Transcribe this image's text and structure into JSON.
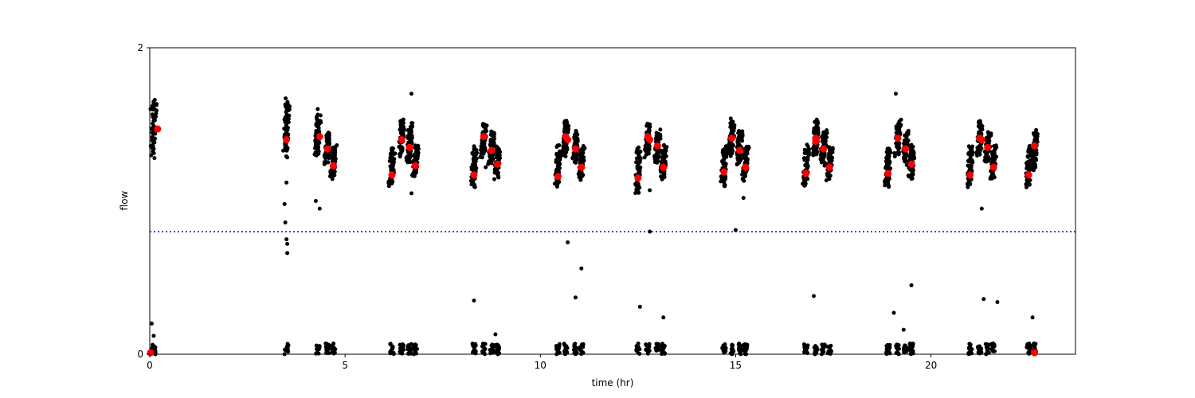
{
  "chart_data": {
    "type": "scatter",
    "xlabel": "time (hr)",
    "ylabel": "flow",
    "xlim": [
      0,
      23.7
    ],
    "ylim": [
      0,
      2
    ],
    "xticks": [
      0,
      5,
      10,
      15,
      20
    ],
    "yticks": [
      0,
      2
    ],
    "grid": false,
    "threshold": {
      "y": 0.8,
      "style": "dotted",
      "color": "#0000ff"
    },
    "colors": {
      "points": "#000000",
      "means": "#ff0000"
    },
    "clusters": [
      {
        "x": 0.1,
        "ymin": 1.3,
        "ymax": 1.65,
        "low": true
      },
      {
        "x": 3.5,
        "ymin": 1.3,
        "ymax": 1.65,
        "low": true
      },
      {
        "x": 4.3,
        "ymin": 1.3,
        "ymax": 1.55,
        "low": true
      },
      {
        "x": 4.55,
        "ymin": 1.25,
        "ymax": 1.45,
        "low": true
      },
      {
        "x": 4.7,
        "ymin": 1.15,
        "ymax": 1.35,
        "low": true
      },
      {
        "x": 6.2,
        "ymin": 1.1,
        "ymax": 1.35,
        "low": true
      },
      {
        "x": 6.45,
        "ymin": 1.3,
        "ymax": 1.52,
        "low": true
      },
      {
        "x": 6.65,
        "ymin": 1.25,
        "ymax": 1.5,
        "low": true
      },
      {
        "x": 6.8,
        "ymin": 1.15,
        "ymax": 1.35,
        "low": true
      },
      {
        "x": 8.3,
        "ymin": 1.1,
        "ymax": 1.35,
        "low": true
      },
      {
        "x": 8.55,
        "ymin": 1.3,
        "ymax": 1.5,
        "low": true
      },
      {
        "x": 8.75,
        "ymin": 1.25,
        "ymax": 1.45,
        "low": true
      },
      {
        "x": 8.9,
        "ymin": 1.15,
        "ymax": 1.35,
        "low": true
      },
      {
        "x": 10.45,
        "ymin": 1.1,
        "ymax": 1.35,
        "low": true
      },
      {
        "x": 10.65,
        "ymin": 1.3,
        "ymax": 1.52,
        "low": true
      },
      {
        "x": 10.9,
        "ymin": 1.25,
        "ymax": 1.45,
        "low": true
      },
      {
        "x": 11.05,
        "ymin": 1.15,
        "ymax": 1.35,
        "low": true
      },
      {
        "x": 12.5,
        "ymin": 1.05,
        "ymax": 1.35,
        "low": true
      },
      {
        "x": 12.75,
        "ymin": 1.3,
        "ymax": 1.5,
        "low": true
      },
      {
        "x": 13.0,
        "ymin": 1.25,
        "ymax": 1.45,
        "low": true
      },
      {
        "x": 13.15,
        "ymin": 1.15,
        "ymax": 1.35,
        "low": true
      },
      {
        "x": 14.7,
        "ymin": 1.1,
        "ymax": 1.35,
        "low": true
      },
      {
        "x": 14.9,
        "ymin": 1.3,
        "ymax": 1.52,
        "low": true
      },
      {
        "x": 15.1,
        "ymin": 1.25,
        "ymax": 1.45,
        "low": true
      },
      {
        "x": 15.25,
        "ymin": 1.15,
        "ymax": 1.35,
        "low": true
      },
      {
        "x": 16.8,
        "ymin": 1.1,
        "ymax": 1.35,
        "low": true
      },
      {
        "x": 17.05,
        "ymin": 1.3,
        "ymax": 1.52,
        "low": true
      },
      {
        "x": 17.25,
        "ymin": 1.25,
        "ymax": 1.45,
        "low": true
      },
      {
        "x": 17.4,
        "ymin": 1.15,
        "ymax": 1.35,
        "low": true
      },
      {
        "x": 18.9,
        "ymin": 1.1,
        "ymax": 1.35,
        "low": true
      },
      {
        "x": 19.15,
        "ymin": 1.3,
        "ymax": 1.52,
        "low": true
      },
      {
        "x": 19.35,
        "ymin": 1.25,
        "ymax": 1.45,
        "low": true
      },
      {
        "x": 19.5,
        "ymin": 1.15,
        "ymax": 1.35,
        "low": true
      },
      {
        "x": 21.0,
        "ymin": 1.1,
        "ymax": 1.35,
        "low": true
      },
      {
        "x": 21.25,
        "ymin": 1.3,
        "ymax": 1.52,
        "low": true
      },
      {
        "x": 21.45,
        "ymin": 1.25,
        "ymax": 1.45,
        "low": true
      },
      {
        "x": 21.6,
        "ymin": 1.15,
        "ymax": 1.35,
        "low": true
      },
      {
        "x": 22.5,
        "ymin": 1.1,
        "ymax": 1.35,
        "low": true
      },
      {
        "x": 22.65,
        "ymin": 1.2,
        "ymax": 1.45,
        "low": true
      }
    ],
    "outliers": [
      [
        0.02,
        1.6
      ],
      [
        0.05,
        0.2
      ],
      [
        0.1,
        0.12
      ],
      [
        3.45,
        0.98
      ],
      [
        3.47,
        0.86
      ],
      [
        3.5,
        0.75
      ],
      [
        3.52,
        0.72
      ],
      [
        3.47,
        1.63
      ],
      [
        3.49,
        1.55
      ],
      [
        3.5,
        1.12
      ],
      [
        3.52,
        0.66
      ],
      [
        4.25,
        1.0
      ],
      [
        4.35,
        0.95
      ],
      [
        4.3,
        1.6
      ],
      [
        8.3,
        0.35
      ],
      [
        8.6,
        1.22
      ],
      [
        8.85,
        0.13
      ],
      [
        10.7,
        0.73
      ],
      [
        10.9,
        0.37
      ],
      [
        11.05,
        0.56
      ],
      [
        12.55,
        0.31
      ],
      [
        12.8,
        1.07
      ],
      [
        12.8,
        0.8
      ],
      [
        13.15,
        0.24
      ],
      [
        15.2,
        1.02
      ],
      [
        15.0,
        0.81
      ],
      [
        17.0,
        0.38
      ],
      [
        19.1,
        1.7
      ],
      [
        19.05,
        0.27
      ],
      [
        19.3,
        0.16
      ],
      [
        19.5,
        0.45
      ],
      [
        21.3,
        0.95
      ],
      [
        21.35,
        0.36
      ],
      [
        21.7,
        0.34
      ],
      [
        22.6,
        0.24
      ],
      [
        6.7,
        1.05
      ],
      [
        6.7,
        1.7
      ]
    ],
    "means": [
      [
        0.2,
        1.47
      ],
      [
        3.5,
        1.4
      ],
      [
        4.35,
        1.42
      ],
      [
        4.55,
        1.34
      ],
      [
        4.7,
        1.23
      ],
      [
        6.2,
        1.17
      ],
      [
        6.45,
        1.4
      ],
      [
        6.65,
        1.35
      ],
      [
        6.8,
        1.23
      ],
      [
        8.3,
        1.17
      ],
      [
        8.55,
        1.42
      ],
      [
        8.75,
        1.33
      ],
      [
        8.9,
        1.24
      ],
      [
        10.45,
        1.16
      ],
      [
        10.65,
        1.42
      ],
      [
        10.7,
        1.4
      ],
      [
        10.9,
        1.34
      ],
      [
        11.05,
        1.22
      ],
      [
        12.5,
        1.15
      ],
      [
        12.75,
        1.42
      ],
      [
        12.8,
        1.4
      ],
      [
        13.0,
        1.36
      ],
      [
        13.15,
        1.22
      ],
      [
        14.7,
        1.19
      ],
      [
        14.9,
        1.41
      ],
      [
        15.1,
        1.33
      ],
      [
        15.25,
        1.22
      ],
      [
        16.8,
        1.18
      ],
      [
        17.05,
        1.41
      ],
      [
        17.05,
        1.39
      ],
      [
        17.25,
        1.34
      ],
      [
        17.4,
        1.22
      ],
      [
        18.9,
        1.18
      ],
      [
        19.15,
        1.41
      ],
      [
        19.35,
        1.34
      ],
      [
        19.5,
        1.24
      ],
      [
        21.0,
        1.17
      ],
      [
        21.25,
        1.41
      ],
      [
        21.3,
        1.4
      ],
      [
        21.45,
        1.35
      ],
      [
        21.6,
        1.22
      ],
      [
        22.5,
        1.17
      ],
      [
        22.65,
        1.36
      ],
      [
        0.02,
        0.01
      ],
      [
        22.65,
        0.01
      ]
    ]
  }
}
